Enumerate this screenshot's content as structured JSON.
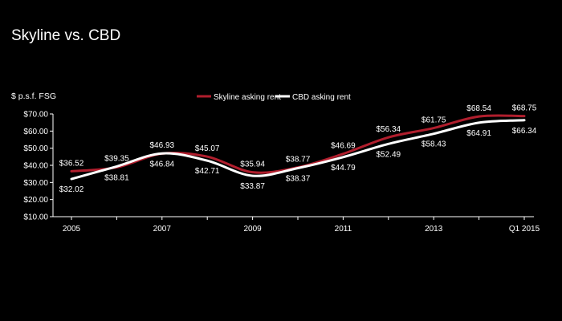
{
  "title": "Skyline vs. CBD",
  "chart_data": {
    "type": "line",
    "ylabel": "$ p.s.f. FSG",
    "xlabel": "",
    "ylim": [
      10,
      70
    ],
    "yticks": [
      10,
      20,
      30,
      40,
      50,
      60,
      70
    ],
    "ytick_labels": [
      "$10.00",
      "$20.00",
      "$30.00",
      "$40.00",
      "$50.00",
      "$60.00",
      "$70.00"
    ],
    "x": [
      "2005",
      "2006",
      "2007",
      "2008",
      "2009",
      "2010",
      "2011",
      "2012",
      "2013",
      "2014",
      "Q1 2015"
    ],
    "xtick_labels": [
      "2005",
      "",
      "2007",
      "",
      "2009",
      "",
      "2011",
      "",
      "2013",
      "",
      "Q1 2015"
    ],
    "grid": false,
    "legend_position": "top-center",
    "series": [
      {
        "name": "Skyline asking rent",
        "color": "#b01e2d",
        "values": [
          36.52,
          38.81,
          46.84,
          45.07,
          35.94,
          38.77,
          46.69,
          56.34,
          61.75,
          68.54,
          68.75
        ],
        "labels": [
          "$36.52",
          "$38.81",
          "$46.84",
          "$45.07",
          "$35.94",
          "$38.77",
          "$46.69",
          "$56.34",
          "$61.75",
          "$68.54",
          "$68.75"
        ]
      },
      {
        "name": "CBD asking rent",
        "color": "#ffffff",
        "values": [
          32.02,
          39.35,
          46.93,
          42.71,
          33.87,
          38.37,
          44.79,
          52.49,
          58.43,
          64.91,
          66.34
        ],
        "labels": [
          "$32.02",
          "$39.35",
          "$46.93",
          "$42.71",
          "$33.87",
          "$38.37",
          "$44.79",
          "$52.49",
          "$58.43",
          "$64.91",
          "$66.34"
        ]
      }
    ]
  }
}
